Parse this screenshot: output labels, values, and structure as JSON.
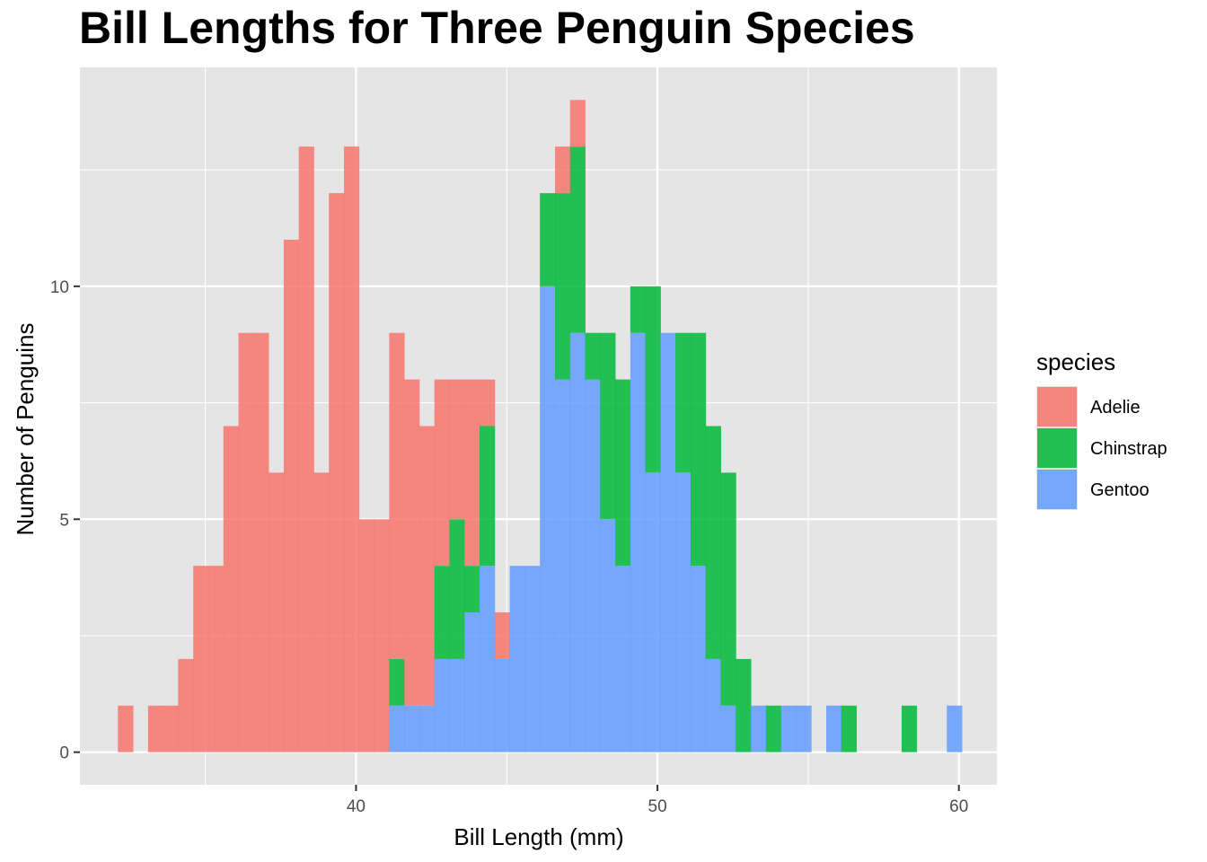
{
  "chart_data": {
    "type": "bar",
    "subtype": "stacked-histogram",
    "title": "Bill Lengths for Three Penguin Species",
    "xlabel": "Bill Length (mm)",
    "ylabel": "Number of Penguins",
    "xlim": [
      30.84,
      61.26
    ],
    "ylim": [
      -0.7,
      14.7
    ],
    "x_ticks": [
      40,
      50,
      60
    ],
    "y_ticks": [
      0,
      5,
      10
    ],
    "grid": true,
    "bin_start": 32.1,
    "bin_width": 0.5,
    "legend": {
      "title": "species",
      "position": "right",
      "entries": [
        "Adelie",
        "Chinstrap",
        "Gentoo"
      ]
    },
    "colors": {
      "Adelie": "#F8766D",
      "Chinstrap": "#00BA38",
      "Gentoo": "#619CFF",
      "panel": "#E5E5E5",
      "grid": "#FFFFFF"
    },
    "series": [
      {
        "name": "Gentoo",
        "values": [
          0,
          0,
          0,
          0,
          0,
          0,
          0,
          0,
          0,
          0,
          0,
          0,
          0,
          0,
          0,
          0,
          0,
          0,
          1,
          1,
          1,
          2,
          2,
          3,
          4,
          2,
          4,
          4,
          10,
          8,
          9,
          8,
          5,
          4,
          9,
          6,
          9,
          6,
          4,
          2,
          1,
          0,
          1,
          0,
          1,
          1,
          0,
          1,
          0,
          0,
          0,
          0,
          0,
          0,
          0,
          1
        ]
      },
      {
        "name": "Chinstrap",
        "values": [
          0,
          0,
          0,
          0,
          0,
          0,
          0,
          0,
          0,
          0,
          0,
          0,
          0,
          0,
          0,
          0,
          0,
          0,
          1,
          0,
          0,
          2,
          3,
          1,
          3,
          0,
          0,
          0,
          2,
          4,
          4,
          1,
          4,
          4,
          1,
          4,
          0,
          3,
          5,
          5,
          5,
          2,
          0,
          1,
          0,
          0,
          0,
          0,
          1,
          0,
          0,
          0,
          1,
          0,
          0,
          0
        ]
      },
      {
        "name": "Adelie",
        "values": [
          1,
          0,
          1,
          1,
          2,
          4,
          4,
          7,
          9,
          9,
          6,
          11,
          13,
          6,
          12,
          13,
          5,
          5,
          7,
          7,
          6,
          4,
          3,
          4,
          1,
          1,
          0,
          0,
          0,
          1,
          1,
          0,
          0,
          0,
          0,
          0,
          0,
          0,
          0,
          0,
          0,
          0,
          0,
          0,
          0,
          0,
          0,
          0,
          0,
          0,
          0,
          0,
          0,
          0,
          0,
          0
        ]
      }
    ]
  }
}
